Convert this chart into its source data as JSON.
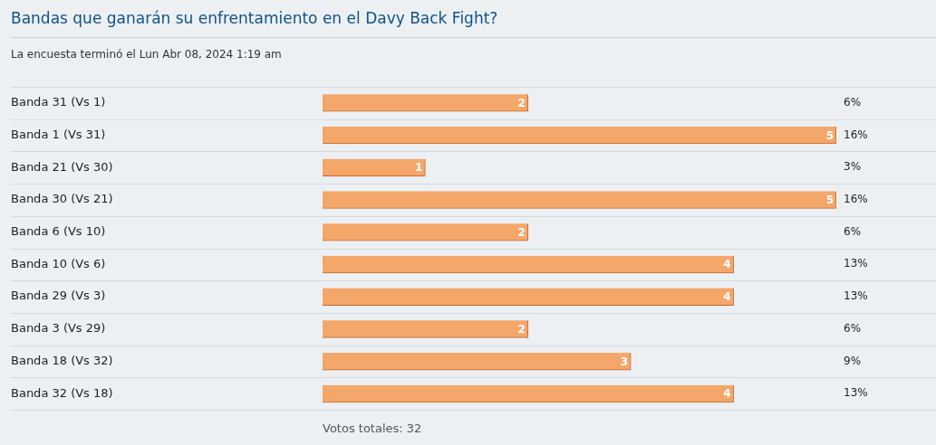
{
  "chart_data": {
    "type": "bar",
    "orientation": "horizontal",
    "title": "Bandas que ganarán su enfrentamiento en el Davy Back Fight?",
    "subtitle": "La encuesta terminó el Lun Abr 08, 2024 1:19 am",
    "categories": [
      "Banda 31 (Vs 1)",
      "Banda 1 (Vs 31)",
      "Banda 21 (Vs 30)",
      "Banda 30 (Vs 21)",
      "Banda 6 (Vs 10)",
      "Banda 10 (Vs 6)",
      "Banda 29 (Vs 3)",
      "Banda 3 (Vs 29)",
      "Banda 18 (Vs 32)",
      "Banda 32 (Vs 18)"
    ],
    "values": [
      2,
      5,
      1,
      5,
      2,
      4,
      4,
      2,
      3,
      4
    ],
    "color": "#f4a76a",
    "data_labels": true,
    "grid": "y",
    "legend": false,
    "annotations": [
      "6%",
      "16%",
      "3%",
      "16%",
      "6%",
      "13%",
      "13%",
      "6%",
      "9%",
      "13%",
      "Votos totales: 32"
    ]
  }
}
